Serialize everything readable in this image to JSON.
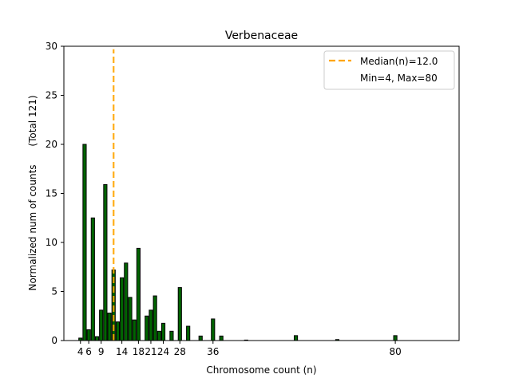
{
  "chart_data": {
    "type": "bar",
    "title": "Verbenaceae",
    "xlabel": "Chromosome count (n)",
    "ylabel": "Normalized num of counts      (Total 121)",
    "xlim": [
      0,
      95.4
    ],
    "ylim": [
      0,
      30
    ],
    "xticks": [
      4,
      6,
      9,
      14,
      18,
      21,
      24,
      28,
      36,
      80
    ],
    "yticks": [
      0,
      5,
      10,
      15,
      20,
      25,
      30
    ],
    "grid": false,
    "bar_color": "#006400",
    "edge_color": "#000000",
    "median_color": "#FFA500",
    "median": 12.0,
    "legend_position": "top-right",
    "legend": [
      "Median(n)=12.0",
      "Min=4, Max=80"
    ],
    "x": [
      4,
      5,
      6,
      7,
      8,
      9,
      10,
      11,
      12,
      13,
      14,
      15,
      16,
      17,
      18,
      20,
      21,
      22,
      23,
      24,
      26,
      28,
      30,
      33,
      36,
      38,
      44,
      56,
      66,
      80
    ],
    "values": [
      0.25,
      20.0,
      1.1,
      12.5,
      0.4,
      3.1,
      15.9,
      2.8,
      7.2,
      1.9,
      6.4,
      7.9,
      4.4,
      2.1,
      9.4,
      2.5,
      3.1,
      4.55,
      0.95,
      1.76,
      0.95,
      5.4,
      1.46,
      0.46,
      2.2,
      0.46,
      0.05,
      0.5,
      0.1,
      0.5
    ]
  }
}
